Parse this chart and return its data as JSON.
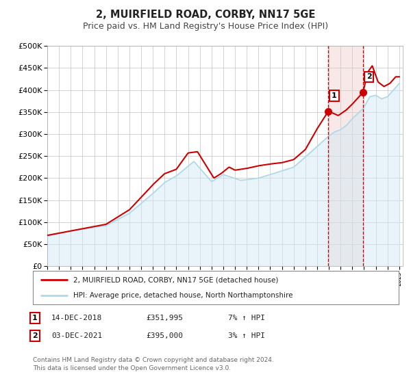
{
  "title": "2, MUIRFIELD ROAD, CORBY, NN17 5GE",
  "subtitle": "Price paid vs. HM Land Registry's House Price Index (HPI)",
  "ylim": [
    0,
    500000
  ],
  "yticks": [
    0,
    50000,
    100000,
    150000,
    200000,
    250000,
    300000,
    350000,
    400000,
    450000,
    500000
  ],
  "ytick_labels": [
    "£0",
    "£50K",
    "£100K",
    "£150K",
    "£200K",
    "£250K",
    "£300K",
    "£350K",
    "£400K",
    "£450K",
    "£500K"
  ],
  "hpi_color": "#add8e6",
  "hpi_fill_color": "#d0e8f5",
  "price_color": "#cc0000",
  "vline_color": "#cc0000",
  "vspan_color": "#f8e8e8",
  "grid_color": "#cccccc",
  "background_color": "#ffffff",
  "sale1_year": 2018.96,
  "sale1_value": 351995,
  "sale2_year": 2021.92,
  "sale2_value": 395000,
  "legend_label_price": "2, MUIRFIELD ROAD, CORBY, NN17 5GE (detached house)",
  "legend_label_hpi": "HPI: Average price, detached house, North Northamptonshire",
  "table_row1": [
    "1",
    "14-DEC-2018",
    "£351,995",
    "7% ↑ HPI"
  ],
  "table_row2": [
    "2",
    "03-DEC-2021",
    "£395,000",
    "3% ↑ HPI"
  ],
  "footnote1": "Contains HM Land Registry data © Crown copyright and database right 2024.",
  "footnote2": "This data is licensed under the Open Government Licence v3.0."
}
